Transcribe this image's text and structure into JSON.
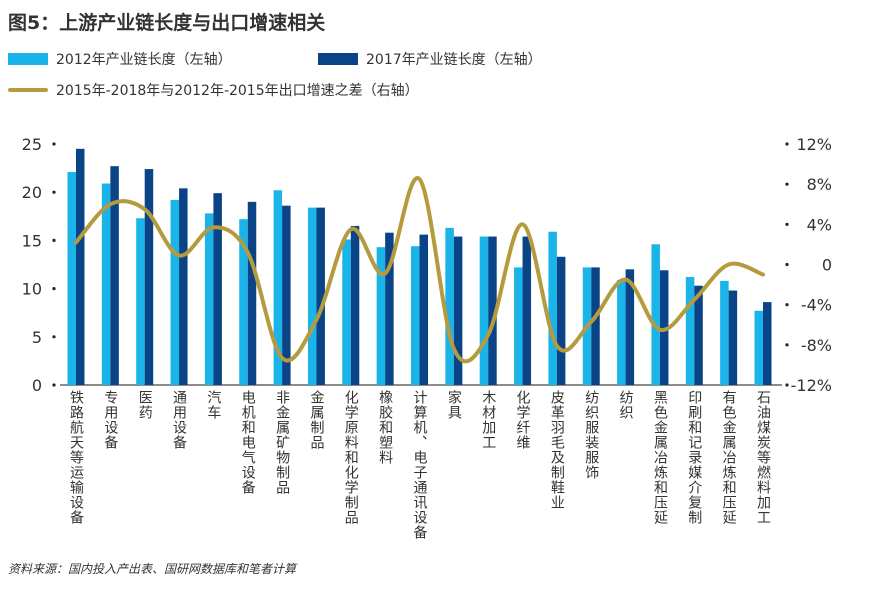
{
  "source": "资料来源：国内投入产出表、国研网数据库和笔者计算",
  "colors": {
    "light": "#1bb4e8",
    "dark": "#0a4487",
    "line": "#b59a3e"
  },
  "chart_data": {
    "type": "bar+line",
    "title": "图5：上游产业链长度与出口增速相关",
    "categories": [
      "铁路航天等运输设备",
      "专用设备",
      "医药",
      "通用设备",
      "汽车",
      "电机和电气设备",
      "非金属矿物制品",
      "金属制品",
      "化学原料和化学制品",
      "橡胶和塑料",
      "计算机、电子通讯设备",
      "家具",
      "木材加工",
      "化学纤维",
      "皮革羽毛及制鞋业",
      "纺织服装服饰",
      "纺织",
      "黑色金属冶炼和压延",
      "印刷和记录媒介复制",
      "有色金属冶炼和压延",
      "石油煤炭等燃料加工"
    ],
    "series": [
      {
        "name": "2012年产业链长度（左轴）",
        "type": "bar",
        "axis": "left",
        "values": [
          22.1,
          20.9,
          17.3,
          19.2,
          17.8,
          17.2,
          20.2,
          18.4,
          15.1,
          14.3,
          14.4,
          16.3,
          15.4,
          12.2,
          15.9,
          12.2,
          10.9,
          14.6,
          11.2,
          10.8,
          7.7
        ]
      },
      {
        "name": "2017年产业链长度（左轴）",
        "type": "bar",
        "axis": "left",
        "values": [
          24.5,
          22.7,
          22.4,
          20.4,
          19.9,
          19.0,
          18.6,
          18.4,
          16.5,
          15.8,
          15.6,
          15.4,
          15.4,
          15.4,
          13.3,
          12.2,
          12.0,
          11.9,
          10.3,
          9.8,
          8.6
        ]
      },
      {
        "name": "2015年-2018年与2012年-2015年出口增速之差（右轴）",
        "type": "line",
        "axis": "right",
        "values": [
          2.2,
          6.0,
          5.5,
          0.9,
          3.7,
          1.2,
          -9.3,
          -5.5,
          3.5,
          -0.9,
          8.5,
          -8.4,
          -7.0,
          4.0,
          -8.1,
          -5.7,
          -1.5,
          -6.5,
          -3.5,
          0.0,
          -1.0
        ]
      }
    ],
    "left_axis": {
      "ylim": [
        0,
        25
      ],
      "ticks": [
        "0",
        "5",
        "10",
        "15",
        "20",
        "25"
      ]
    },
    "right_axis": {
      "ylim": [
        -12,
        12
      ],
      "ticks": [
        "-12%",
        "-8%",
        "-4%",
        "0",
        "4%",
        "8%",
        "12%"
      ]
    },
    "legend": "top-left"
  }
}
